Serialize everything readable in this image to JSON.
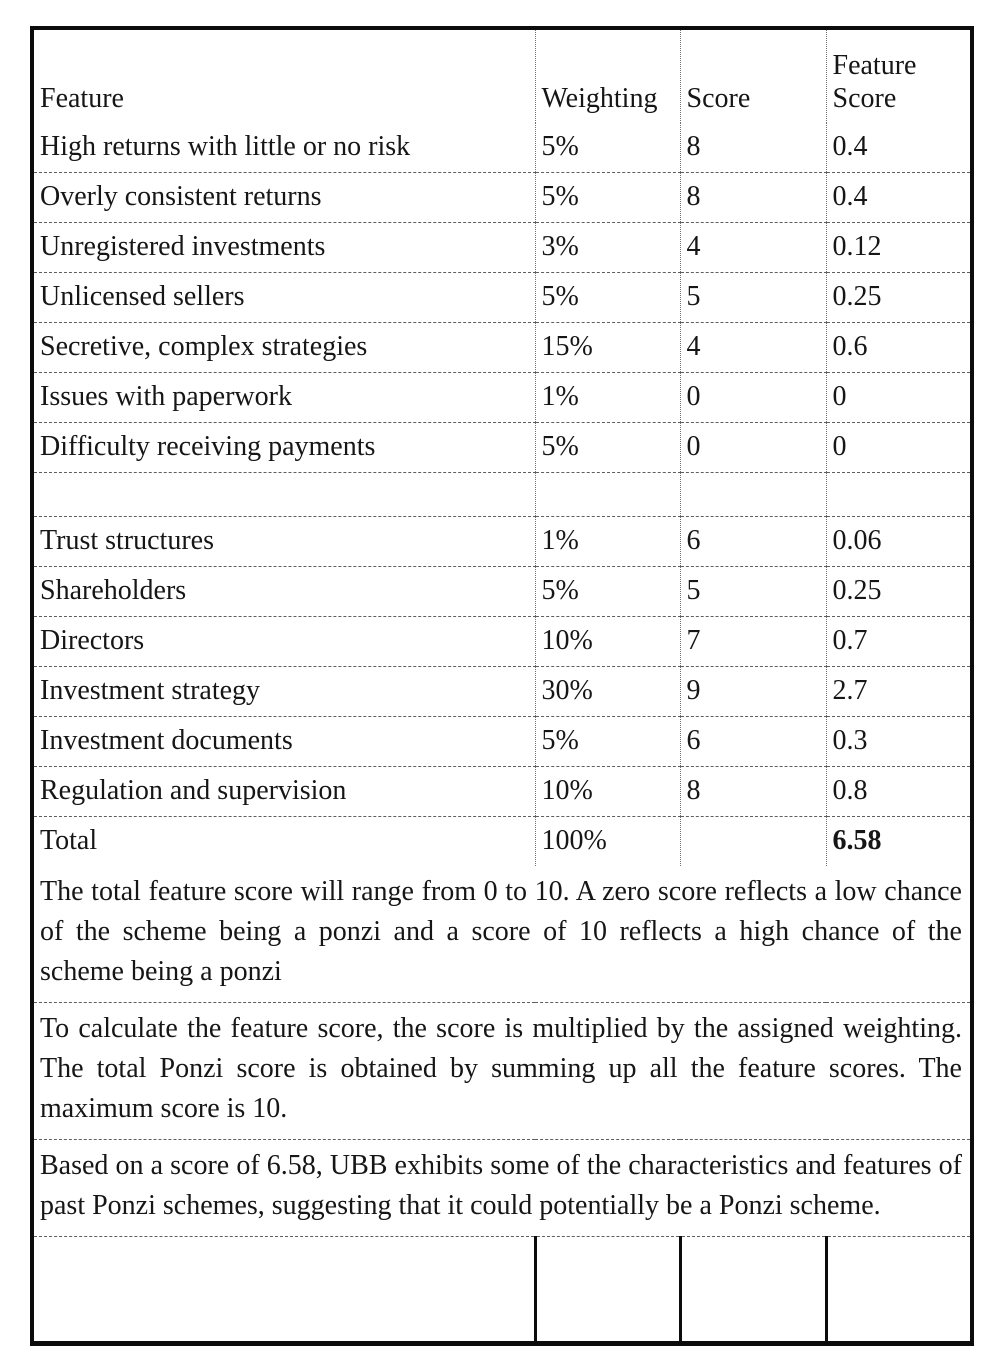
{
  "table": {
    "headers": [
      "Feature",
      "Weighting",
      "Score",
      "Feature Score"
    ],
    "rows": [
      {
        "feature": "High returns with little or no risk",
        "weighting": "5%",
        "score": "8",
        "feature_score": "0.4"
      },
      {
        "feature": "Overly consistent returns",
        "weighting": "5%",
        "score": "8",
        "feature_score": "0.4"
      },
      {
        "feature": "Unregistered investments",
        "weighting": "3%",
        "score": "4",
        "feature_score": "0.12"
      },
      {
        "feature": "Unlicensed sellers",
        "weighting": "5%",
        "score": "5",
        "feature_score": "0.25"
      },
      {
        "feature": "Secretive, complex strategies",
        "weighting": "15%",
        "score": "4",
        "feature_score": "0.6"
      },
      {
        "feature": "Issues with paperwork",
        "weighting": "1%",
        "score": "0",
        "feature_score": "0"
      },
      {
        "feature": "Difficulty receiving payments",
        "weighting": "5%",
        "score": "0",
        "feature_score": "0"
      },
      {
        "feature": "",
        "weighting": "",
        "score": "",
        "feature_score": "",
        "empty": true
      },
      {
        "feature": "Trust structures",
        "weighting": "1%",
        "score": "6",
        "feature_score": "0.06"
      },
      {
        "feature": "Shareholders",
        "weighting": "5%",
        "score": "5",
        "feature_score": "0.25"
      },
      {
        "feature": "Directors",
        "weighting": "10%",
        "score": "7",
        "feature_score": "0.7"
      },
      {
        "feature": "Investment strategy",
        "weighting": "30%",
        "score": "9",
        "feature_score": "2.7"
      },
      {
        "feature": "Investment documents",
        "weighting": "5%",
        "score": "6",
        "feature_score": "0.3"
      },
      {
        "feature": "Regulation and supervision",
        "weighting": "10%",
        "score": "8",
        "feature_score": "0.8"
      },
      {
        "feature": "Total",
        "weighting": "100%",
        "score": "",
        "feature_score": "6.58",
        "total": true
      }
    ]
  },
  "notes": [
    "The total feature score will range from 0 to 10. A zero score reflects a low chance of the scheme being a ponzi and a score of 10 reflects a high chance of the scheme being a ponzi",
    "To calculate the feature score, the score is multiplied by the assigned weighting. The total Ponzi score is obtained by summing up all the feature scores. The maximum score is 10.",
    "Based on a score of 6.58, UBB exhibits some of the characteristics and features of past Ponzi schemes, suggesting that it could potentially be a Ponzi scheme."
  ],
  "colors": {
    "text": "#161616",
    "border": "#0c0c0c"
  }
}
